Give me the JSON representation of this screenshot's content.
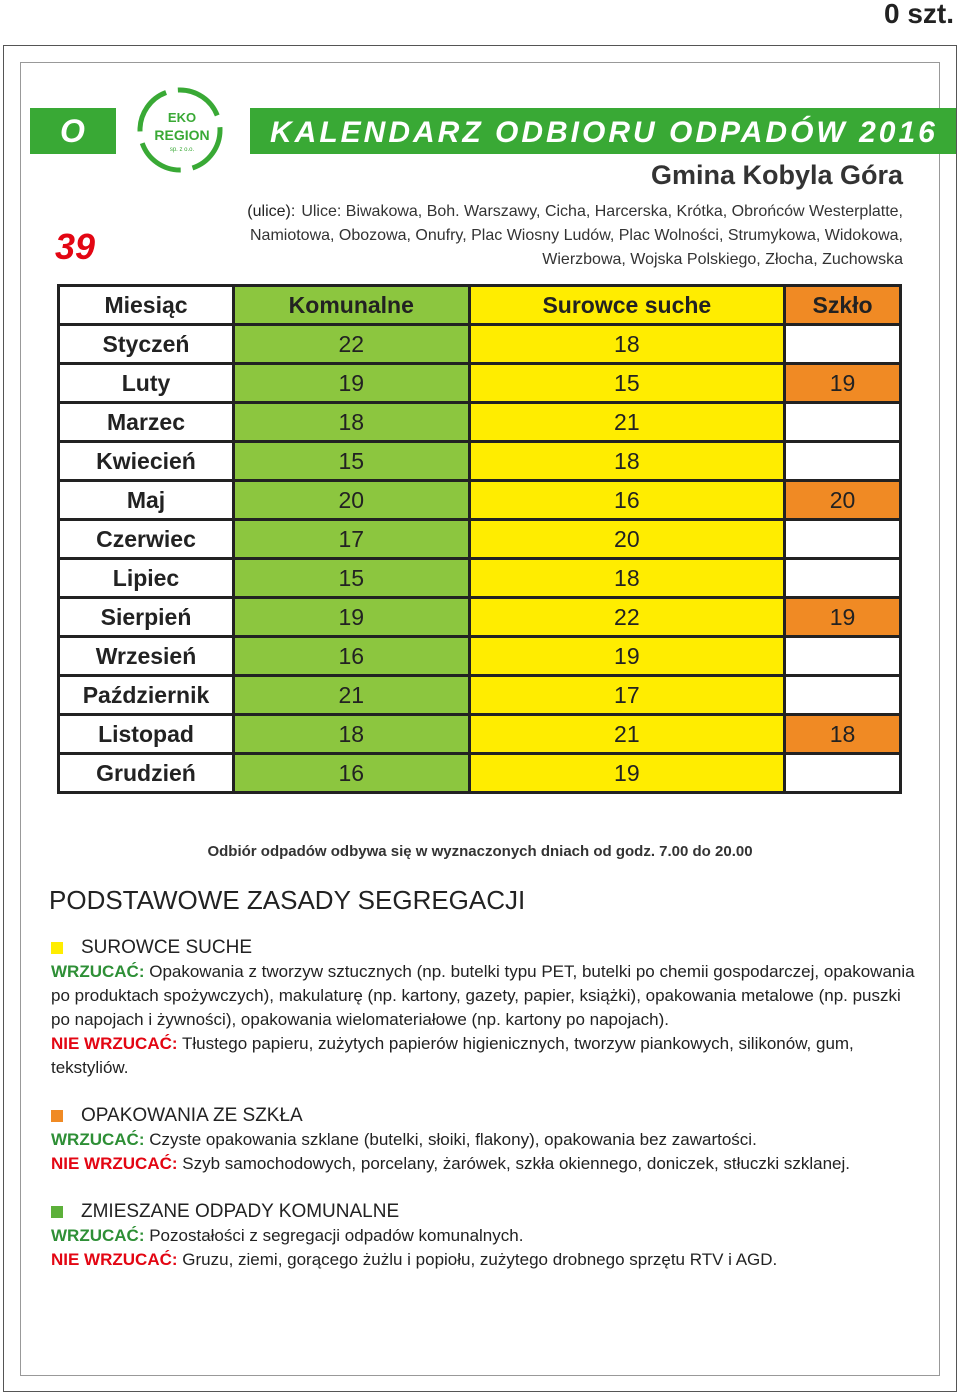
{
  "header": {
    "count": "0 szt.",
    "letter": "O",
    "number": "39",
    "logo": {
      "line1": "EKO",
      "line2": "REGION",
      "line3": "sp. z o.o."
    },
    "title": "KALENDARZ ODBIORU ODPADÓW 2016",
    "gmina": "Gmina Kobyla Góra",
    "streets_label": "(ulice):",
    "streets_lines": [
      "Ulice: Biwakowa, Boh. Warszawy, Cicha, Harcerska, Krótka, Obrońców Westerplatte,",
      "Namiotowa, Obozowa, Onufry, Plac Wiosny Ludów, Plac Wolności, Strumykowa, Widokowa,",
      "Wierzbowa, Wojska Polskiego, Złocha, Zuchowska"
    ]
  },
  "table": {
    "columns": [
      "Miesiąc",
      "Komunalne",
      "Surowce suche",
      "Szkło"
    ],
    "rows": [
      [
        "Styczeń",
        22,
        18
      ],
      [
        "Luty",
        19,
        15,
        19
      ],
      [
        "Marzec",
        18,
        21
      ],
      [
        "Kwiecień",
        15,
        18
      ],
      [
        "Maj",
        20,
        16,
        20
      ],
      [
        "Czerwiec",
        17,
        20
      ],
      [
        "Lipiec",
        15,
        18
      ],
      [
        "Sierpień",
        19,
        22,
        19
      ],
      [
        "Wrzesień",
        16,
        19
      ],
      [
        "Październik",
        21,
        17
      ],
      [
        "Listopad",
        18,
        21,
        18
      ],
      [
        "Grudzień",
        16,
        19
      ]
    ],
    "note": "Odbiór odpadów odbywa się w wyznaczonych dniach od godz. 7.00 do 20.00"
  },
  "rules": {
    "title": "PODSTAWOWE ZASADY SEGREGACJI",
    "sections": [
      {
        "title": "SUROWCE SUCHE",
        "color": "#ffed00",
        "items": [
          {
            "label": "WRZUCAĆ:",
            "kind": "yes",
            "text": "Opakowania z tworzyw sztucznych (np. butelki typu PET, butelki po chemii gospodarczej, opakowania po produktach spożywczych), makulaturę (np. kartony, gazety, papier, książki), opakowania metalowe (np. puszki po napojach i żywności), opakowania wielomateriałowe (np. kartony po napojach)."
          },
          {
            "label": "NIE WRZUCAĆ:",
            "kind": "no",
            "text": "Tłustego papieru, zużytych papierów higienicznych, tworzyw piankowych, silikonów, gum, tekstyliów."
          }
        ]
      },
      {
        "title": "OPAKOWANIA ZE SZKŁA",
        "color": "#f08a24",
        "items": [
          {
            "label": "WRZUCAĆ:",
            "kind": "yes",
            "text": "Czyste opakowania szklane (butelki, słoiki, flakony), opakowania bez zawartości."
          },
          {
            "label": "NIE WRZUCAĆ:",
            "kind": "no",
            "text": "Szyb samochodowych, porcelany, żarówek, szkła okiennego, doniczek, stłuczki szklanej."
          }
        ]
      },
      {
        "title": "ZMIESZANE ODPADY KOMUNALNE",
        "color": "#5cb03a",
        "items": [
          {
            "label": "WRZUCAĆ:",
            "kind": "yes",
            "text": "Pozostałości z segregacji odpadów komunalnych."
          },
          {
            "label": "NIE WRZUCAĆ:",
            "kind": "no",
            "text": "Gruzu, ziemi, gorącego żużlu i popiołu, zużytego drobnego sprzętu RTV i AGD."
          }
        ]
      }
    ]
  }
}
